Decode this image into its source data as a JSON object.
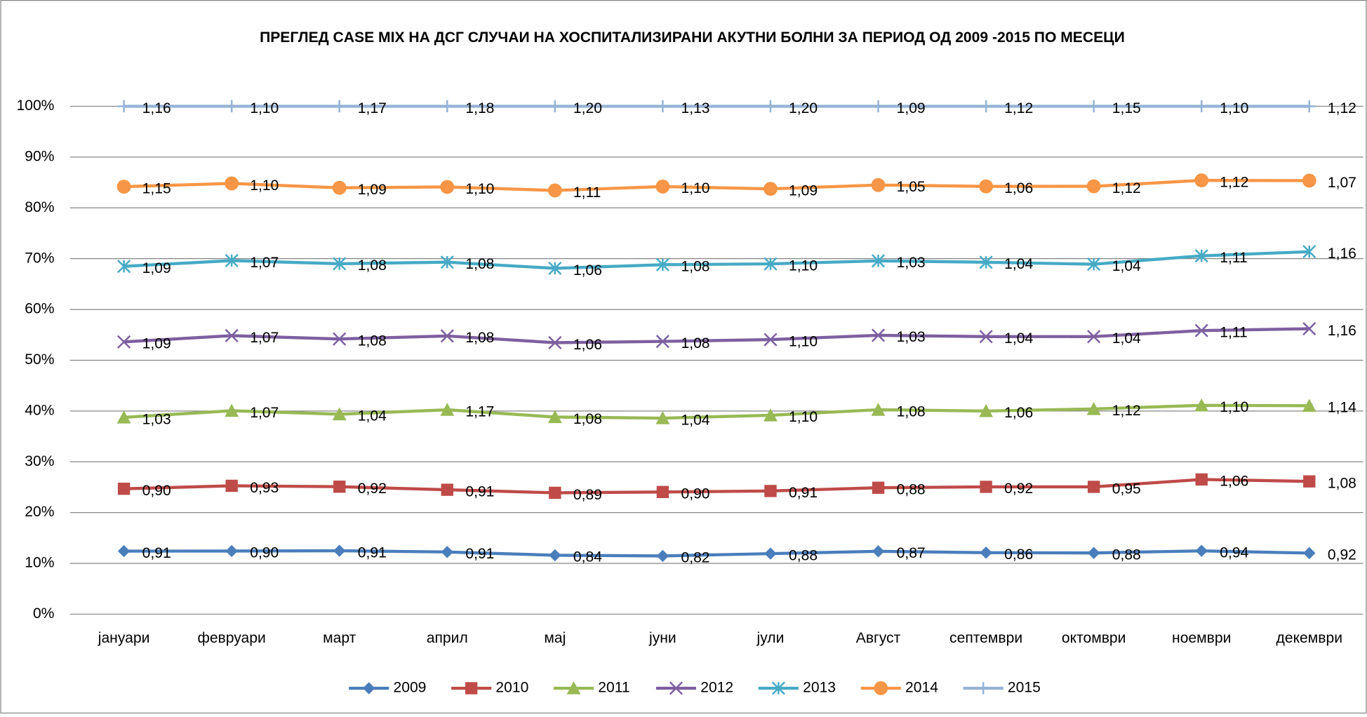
{
  "chart_data": {
    "type": "line",
    "stacking": "percent",
    "title": "ПРЕГЛЕД CASE MIX НА ДСГ СЛУЧАИ НА ХОСПИТАЛИЗИРАНИ АКУТНИ БОЛНИ ЗА ПЕРИОД ОД 2009 -2015 ПО МЕСЕЦИ",
    "categories": [
      "јануари",
      "февруари",
      "март",
      "април",
      "мај",
      "јуни",
      "јули",
      "Август",
      "септември",
      "октомври",
      "ноември",
      "декември"
    ],
    "ylim": [
      0,
      100
    ],
    "yticks": [
      {
        "value": 0,
        "label": "0%"
      },
      {
        "value": 10,
        "label": "10%"
      },
      {
        "value": 20,
        "label": "20%"
      },
      {
        "value": 30,
        "label": "30%"
      },
      {
        "value": 40,
        "label": "40%"
      },
      {
        "value": 50,
        "label": "50%"
      },
      {
        "value": 60,
        "label": "60%"
      },
      {
        "value": 70,
        "label": "70%"
      },
      {
        "value": 80,
        "label": "80%"
      },
      {
        "value": 90,
        "label": "90%"
      },
      {
        "value": 100,
        "label": "100%"
      }
    ],
    "grid": true,
    "legend": "bottom",
    "series": [
      {
        "name": "2009",
        "color": "#4a7ebb",
        "marker": "diamond",
        "values": [
          0.91,
          0.9,
          0.91,
          0.91,
          0.84,
          0.82,
          0.88,
          0.87,
          0.86,
          0.88,
          0.94,
          0.92
        ],
        "value_labels": [
          "0,91",
          "0,90",
          "0,91",
          "0,91",
          "0,84",
          "0,82",
          "0,88",
          "0,87",
          "0,86",
          "0,88",
          "0,94",
          "0,92"
        ]
      },
      {
        "name": "2010",
        "color": "#be4b48",
        "marker": "square",
        "values": [
          0.9,
          0.93,
          0.92,
          0.91,
          0.89,
          0.9,
          0.91,
          0.88,
          0.92,
          0.95,
          1.06,
          1.08
        ],
        "value_labels": [
          "0,90",
          "0,93",
          "0,92",
          "0,91",
          "0,89",
          "0,90",
          "0,91",
          "0,88",
          "0,92",
          "0,95",
          "1,06",
          "1,08"
        ]
      },
      {
        "name": "2011",
        "color": "#98b954",
        "marker": "triangle",
        "values": [
          1.03,
          1.07,
          1.04,
          1.17,
          1.08,
          1.04,
          1.1,
          1.08,
          1.06,
          1.12,
          1.1,
          1.14
        ],
        "value_labels": [
          "1,03",
          "1,07",
          "1,04",
          "1,17",
          "1,08",
          "1,04",
          "1,10",
          "1,08",
          "1,06",
          "1,12",
          "1,10",
          "1,14"
        ]
      },
      {
        "name": "2012",
        "color": "#7d60a0",
        "marker": "x",
        "values": [
          1.09,
          1.07,
          1.08,
          1.08,
          1.06,
          1.08,
          1.1,
          1.03,
          1.04,
          1.04,
          1.11,
          1.16
        ],
        "value_labels": [
          "1,09",
          "1,07",
          "1,08",
          "1,08",
          "1,06",
          "1,08",
          "1,10",
          "1,03",
          "1,04",
          "1,04",
          "1,11",
          "1,16"
        ]
      },
      {
        "name": "2013",
        "color": "#46aac5",
        "marker": "asterisk",
        "values": [
          1.09,
          1.07,
          1.08,
          1.08,
          1.06,
          1.08,
          1.1,
          1.03,
          1.04,
          1.04,
          1.11,
          1.16
        ],
        "value_labels": [
          "1,09",
          "1,07",
          "1,08",
          "1,08",
          "1,06",
          "1,08",
          "1,10",
          "1,03",
          "1,04",
          "1,04",
          "1,11",
          "1,16"
        ]
      },
      {
        "name": "2014",
        "color": "#f79646",
        "marker": "circle",
        "values": [
          1.15,
          1.1,
          1.09,
          1.1,
          1.11,
          1.1,
          1.09,
          1.05,
          1.06,
          1.12,
          1.12,
          1.07
        ],
        "value_labels": [
          "1,15",
          "1,10",
          "1,09",
          "1,10",
          "1,11",
          "1,10",
          "1,09",
          "1,05",
          "1,06",
          "1,12",
          "1,12",
          "1,07"
        ]
      },
      {
        "name": "2015",
        "color": "#94b3d6",
        "marker": "plus",
        "values": [
          1.16,
          1.1,
          1.17,
          1.18,
          1.2,
          1.13,
          1.2,
          1.09,
          1.12,
          1.15,
          1.1,
          1.12
        ],
        "value_labels": [
          "1,16",
          "1,10",
          "1,17",
          "1,18",
          "1,20",
          "1,13",
          "1,20",
          "1,09",
          "1,12",
          "1,15",
          "1,10",
          "1,12"
        ]
      }
    ]
  }
}
